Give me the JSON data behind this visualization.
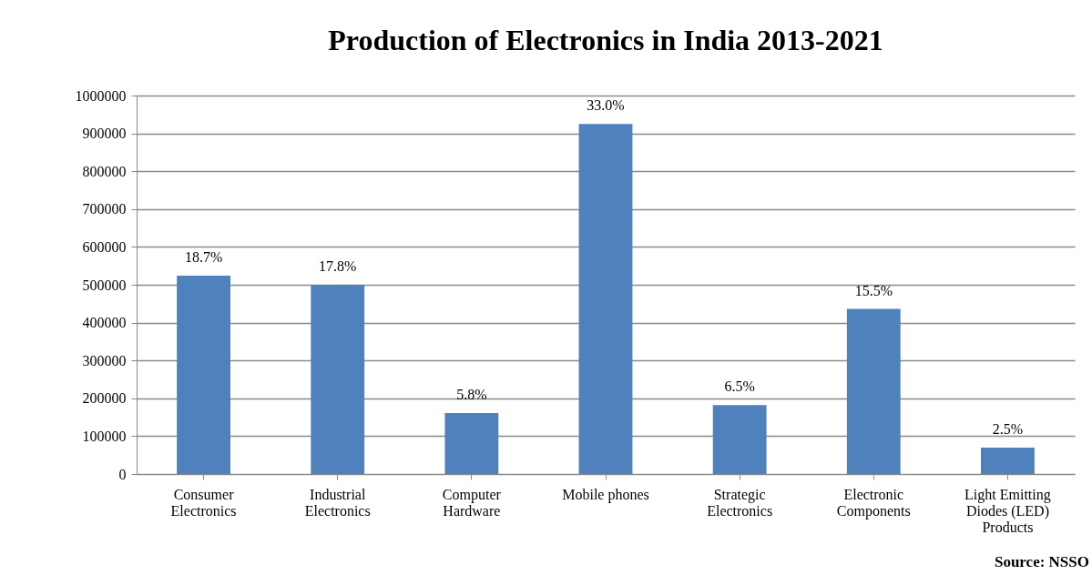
{
  "chart_data": {
    "type": "bar",
    "title": "Production of Electronics in India 2013-2021",
    "categories": [
      "Consumer Electronics",
      "Industrial Electronics",
      "Computer Hardware",
      "Mobile phones",
      "Strategic Electronics",
      "Electronic Components",
      "Light Emitting Diodes (LED) Products"
    ],
    "values": [
      524000,
      500000,
      161000,
      925000,
      182000,
      436000,
      70000
    ],
    "color": "#4f81bd",
    "ylim": [
      0,
      1000000
    ],
    "yticks": [
      0,
      100000,
      200000,
      300000,
      400000,
      500000,
      600000,
      700000,
      800000,
      900000,
      1000000
    ],
    "grid": "y",
    "annotations": [
      {
        "text": "18.7%",
        "x": "Consumer Electronics",
        "y": 524000
      },
      {
        "text": "17.8%",
        "x": "Industrial Electronics",
        "y": 500000
      },
      {
        "text": "5.8%",
        "x": "Computer Hardware",
        "y": 161000
      },
      {
        "text": "33.0%",
        "x": "Mobile phones",
        "y": 925000
      },
      {
        "text": "6.5%",
        "x": "Strategic Electronics",
        "y": 182000
      },
      {
        "text": "15.5%",
        "x": "Electronic Components",
        "y": 436000
      },
      {
        "text": "2.5%",
        "x": "Light Emitting Diodes (LED) Products",
        "y": 70000
      },
      "Source: NSSO"
    ]
  }
}
